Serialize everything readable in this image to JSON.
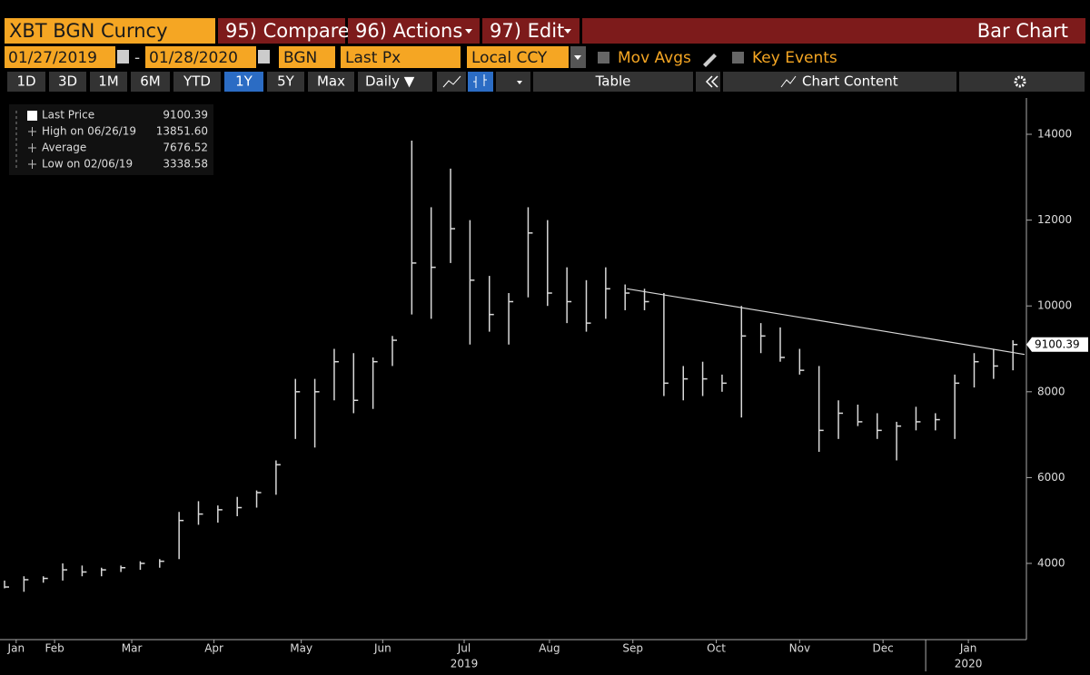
{
  "toolbar": {
    "security": "XBT BGN Curncy",
    "compare": "95) Compare",
    "actions": "96) Actions",
    "edit": "97) Edit",
    "view": "Bar Chart",
    "start_date": "01/27/2019",
    "date_separator": "-",
    "end_date": "01/28/2020",
    "source": "BGN",
    "field": "Last Px",
    "currency": "Local CCY",
    "mov_avgs": "Mov Avgs",
    "key_events": "Key Events",
    "ranges": [
      "1D",
      "3D",
      "1M",
      "6M",
      "YTD",
      "1Y",
      "5Y",
      "Max"
    ],
    "period": "Daily ▼",
    "table": "Table",
    "chart_content": "Chart Content"
  },
  "chart_data": {
    "type": "ohlc",
    "legend": [
      {
        "name": "Last Price",
        "value": "9100.39"
      },
      {
        "name": "High on 06/26/19",
        "value": "13851.60"
      },
      {
        "name": "Average",
        "value": "7676.52"
      },
      {
        "name": "Low on 02/06/19",
        "value": "3338.58"
      }
    ],
    "last_price_label": "9100.39",
    "high": [
      3600,
      3700,
      3700,
      4000,
      3950,
      3900,
      3950,
      4050,
      4100,
      5200,
      5450,
      5350,
      5550,
      5700,
      6400,
      8300,
      8300,
      9000,
      8900,
      8800,
      9300,
      13851.6,
      12300,
      13200,
      12000,
      10700,
      10300,
      12300,
      12000,
      10900,
      10600,
      10900,
      10500,
      10400,
      10300,
      8600,
      8700,
      8400,
      10000,
      9600,
      9500,
      9000,
      8600,
      7800,
      7700,
      7500,
      7300,
      7650,
      7500,
      8400,
      8900,
      9000,
      9200
    ],
    "low": [
      3420,
      3338.58,
      3550,
      3600,
      3700,
      3700,
      3800,
      3850,
      3900,
      4100,
      4900,
      4950,
      5100,
      5300,
      5600,
      6900,
      6700,
      7800,
      7500,
      7600,
      8600,
      9800,
      9700,
      11000,
      9100,
      9400,
      9100,
      10200,
      10000,
      9600,
      9400,
      9700,
      9900,
      9900,
      7900,
      7800,
      7900,
      8000,
      7400,
      8900,
      8700,
      8400,
      6600,
      6900,
      7200,
      6900,
      6400,
      7100,
      7100,
      6900,
      8100,
      8300,
      8500
    ],
    "close": [
      3450,
      3620,
      3650,
      3850,
      3800,
      3850,
      3900,
      4000,
      4050,
      5000,
      5150,
      5250,
      5300,
      5650,
      6300,
      8000,
      8000,
      8700,
      7800,
      8700,
      9200,
      11000,
      10900,
      11800,
      10600,
      9800,
      10100,
      11700,
      10300,
      10100,
      9600,
      10400,
      10300,
      10100,
      8200,
      8300,
      8300,
      8200,
      9300,
      9300,
      8800,
      8500,
      7100,
      7500,
      7300,
      7100,
      7200,
      7300,
      7350,
      8200,
      8700,
      8600,
      9100.39
    ],
    "color": "#d9d9d9",
    "trendline": {
      "x": [
        32.1,
        52.6
      ],
      "values": [
        10400,
        8870
      ],
      "color": "#d9d9d9"
    },
    "xlim": [
      0,
      52.6
    ],
    "xticks": [
      {
        "value": 0.6,
        "label": "Jan"
      },
      {
        "value": 2.58,
        "label": "Feb"
      },
      {
        "value": 6.56,
        "label": "Mar"
      },
      {
        "value": 10.8,
        "label": "Apr"
      },
      {
        "value": 15.3,
        "label": "May"
      },
      {
        "value": 19.5,
        "label": "Jun"
      },
      {
        "value": 23.7,
        "label": "Jul"
      },
      {
        "value": 28.1,
        "label": "Aug"
      },
      {
        "value": 32.4,
        "label": "Sep"
      },
      {
        "value": 36.7,
        "label": "Oct"
      },
      {
        "value": 41.0,
        "label": "Nov"
      },
      {
        "value": 45.3,
        "label": "Dec"
      },
      {
        "value": 49.7,
        "label": "Jan"
      }
    ],
    "year_ticks": [
      {
        "value": 23.7,
        "label": "2019"
      },
      {
        "value": 49.7,
        "label": "2020"
      }
    ],
    "year_boundary": 47.5,
    "ylim": [
      2224,
      14846
    ],
    "yticks": [
      4000,
      6000,
      8000,
      10000,
      12000,
      14000
    ]
  }
}
